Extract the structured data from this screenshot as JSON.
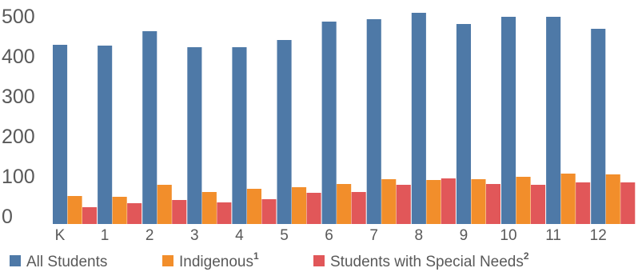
{
  "chart_data": {
    "type": "bar",
    "categories": [
      "K",
      "1",
      "2",
      "3",
      "4",
      "5",
      "6",
      "7",
      "8",
      "9",
      "10",
      "11",
      "12"
    ],
    "series": [
      {
        "name": "All Students",
        "color": "#4e79a7",
        "values": [
          428,
          426,
          462,
          422,
          422,
          440,
          486,
          492,
          508,
          480,
          498,
          498,
          468
        ]
      },
      {
        "name": "Indigenous",
        "superscript": "1",
        "color": "#f28e2b",
        "values": [
          50,
          48,
          78,
          60,
          68,
          72,
          80,
          92,
          90,
          92,
          98,
          106,
          104
        ]
      },
      {
        "name": "Students with Special Needs",
        "superscript": "2",
        "color": "#e15759",
        "values": [
          22,
          32,
          40,
          34,
          42,
          58,
          60,
          78,
          94,
          80,
          78,
          84,
          84
        ]
      }
    ],
    "yticks": [
      0,
      100,
      200,
      300,
      400,
      500
    ],
    "ylim": [
      -20,
      520
    ],
    "grid": false,
    "legend": "bottom-left"
  }
}
